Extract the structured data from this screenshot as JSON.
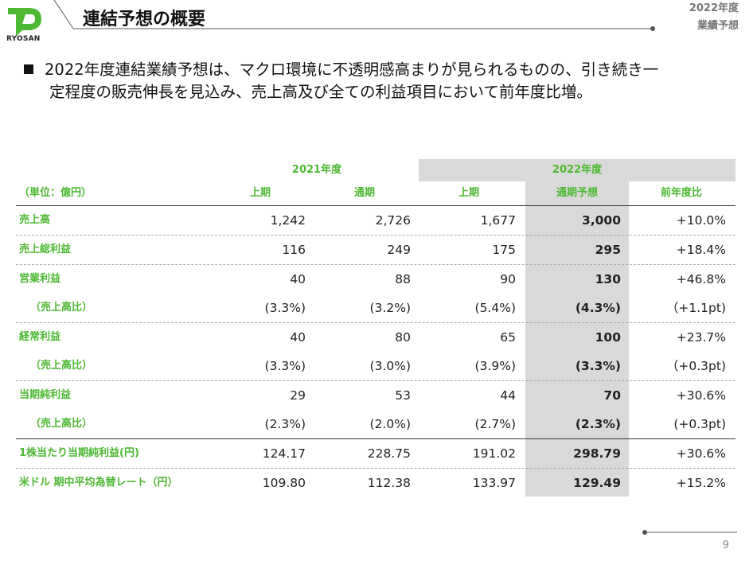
{
  "header": {
    "logo_text": "RYOSAN",
    "title": "連結予想の概要",
    "tag_line1": "2022年度",
    "tag_line2": "業績予想"
  },
  "bullet": {
    "line1": "2022年度連結業績予想は、マクロ環境に不透明感高まりが見られるものの、引き続き一",
    "line2": "定程度の販売伸長を見込み、売上高及び全ての利益項目において前年度比増。"
  },
  "table": {
    "group_2021": "2021年度",
    "group_2022": "2022年度",
    "unit_label": "（単位：億円）",
    "col_h1_2021": "上期",
    "col_full_2021": "通期",
    "col_h1_2022": "上期",
    "col_forecast": "通期予想",
    "col_yoy": "前年度比",
    "rows": [
      {
        "label": "売上高",
        "v1": "1,242",
        "v2": "2,726",
        "v3": "1,677",
        "v4": "3,000",
        "v5": "+10.0%"
      },
      {
        "label": "売上総利益",
        "v1": "116",
        "v2": "249",
        "v3": "175",
        "v4": "295",
        "v5": "+18.4%"
      },
      {
        "label": "営業利益",
        "v1": "40",
        "v2": "88",
        "v3": "90",
        "v4": "130",
        "v5": "+46.8%"
      },
      {
        "label": "（売上高比）",
        "v1": "(3.3%)",
        "v2": "(3.2%)",
        "v3": "(5.4%)",
        "v4": "(4.3%)",
        "v5": "（+1.1pt)"
      },
      {
        "label": "経常利益",
        "v1": "40",
        "v2": "80",
        "v3": "65",
        "v4": "100",
        "v5": "+23.7%"
      },
      {
        "label": "（売上高比）",
        "v1": "(3.3%)",
        "v2": "(3.0%)",
        "v3": "(3.9%)",
        "v4": "(3.3%)",
        "v5": "（+0.3pt)"
      },
      {
        "label": "当期純利益",
        "v1": "29",
        "v2": "53",
        "v3": "44",
        "v4": "70",
        "v5": "+30.6%"
      },
      {
        "label": "（売上高比）",
        "v1": "(2.3%)",
        "v2": "(2.0%)",
        "v3": "(2.7%)",
        "v4": "(2.3%)",
        "v5": "(+0.3pt)"
      },
      {
        "label": "1株当たり当期純利益(円)",
        "v1": "124.17",
        "v2": "228.75",
        "v3": "191.02",
        "v4": "298.79",
        "v5": "+30.6%"
      },
      {
        "label": "米ドル 期中平均為替レート（円）",
        "v1": "109.80",
        "v2": "112.38",
        "v3": "133.97",
        "v4": "129.49",
        "v5": "+15.2%"
      }
    ]
  },
  "page_number": "9",
  "colors": {
    "accent_green": "#4db833",
    "forecast_bg": "#d9d9d9"
  }
}
